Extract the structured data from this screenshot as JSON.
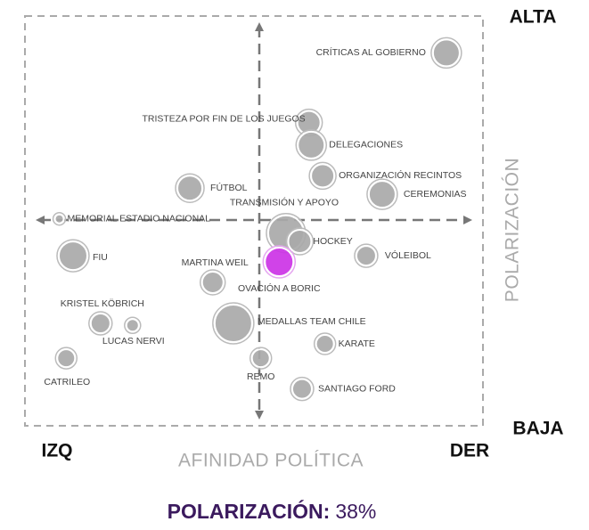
{
  "chart_data": {
    "type": "bubble",
    "x_label": "AFINIDAD POLÍTICA",
    "y_label": "POLARIZACIÓN",
    "x_min_label": "IZQ",
    "x_max_label": "DER",
    "y_max_label": "ALTA",
    "y_min_label": "BAJA",
    "xlim": [
      -100,
      100
    ],
    "ylim": [
      -100,
      100
    ],
    "points": [
      "CRÍTICAS AL GOBIERNO",
      "TRISTEZA POR FIN DE LOS JUEGOS",
      "DELEGACIONES",
      "ORGANIZACIÓN RECINTOS",
      "CEREMONIAS",
      "FÚTBOL",
      "MEMORIAL ESTADIO NACIONAL",
      "TRANSMISIÓN Y APOYO",
      "HOCKEY",
      "FIU",
      "VÓLEIBOL",
      "MARTINA WEIL",
      "OVACIÓN A BORIC",
      "KRISTEL KÖBRICH",
      "LUCAS NERVI",
      "MEDALLAS TEAM CHILE",
      "KARATE",
      "CATRILEO",
      "REMO",
      "SANTIAGO FORD"
    ],
    "x": [
      84,
      24,
      25,
      30,
      56,
      -28,
      -85,
      14,
      20,
      -79,
      49,
      -18,
      11,
      -67,
      -53,
      -9,
      31,
      -82,
      3,
      21
    ],
    "y": [
      82,
      48,
      37,
      22,
      13,
      16,
      1,
      -6,
      -10,
      -17,
      -17,
      -30,
      -20,
      -50,
      -51,
      -50,
      -60,
      -67,
      -67,
      -82
    ],
    "sizes": [
      15,
      13,
      15,
      13,
      15,
      14,
      5,
      20,
      13,
      16,
      11,
      12,
      16,
      11,
      7,
      21,
      10,
      10,
      10,
      11
    ],
    "color": "#a9a9a9",
    "highlight_color": "#cc33e6",
    "highlight": 12,
    "summary": {
      "label": "POLARIZACIÓN:",
      "value": 38,
      "value_label": "38%"
    }
  }
}
